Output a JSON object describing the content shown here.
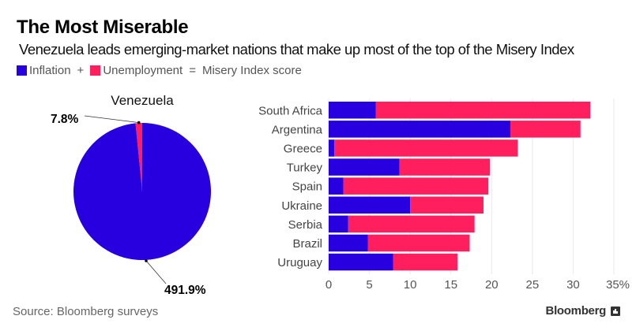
{
  "header": {
    "title": "The Most Miserable",
    "subtitle": "Venezuela leads emerging-market nations that make up most of the top of the Misery Index"
  },
  "legend": {
    "inflation_label": "Inflation",
    "plus": "+",
    "unemployment_label": "Unemployment",
    "equals": "=",
    "result_label": "Misery Index score"
  },
  "colors": {
    "inflation": "#2800E0",
    "unemployment": "#FF1F5F",
    "gridline": "#E8E8EE",
    "text": "#444444"
  },
  "footer": {
    "source": "Source: Bloomberg surveys",
    "brand": "Bloomberg"
  },
  "chart_data": [
    {
      "type": "pie",
      "title": "Venezuela",
      "slices": [
        {
          "name": "Unemployment",
          "value": 7.8,
          "label": "7.8%"
        },
        {
          "name": "Inflation",
          "value": 491.9,
          "label": "491.9%"
        }
      ]
    },
    {
      "type": "bar",
      "orientation": "horizontal",
      "stacked": true,
      "categories": [
        "South Africa",
        "Argentina",
        "Greece",
        "Turkey",
        "Spain",
        "Ukraine",
        "Serbia",
        "Brazil",
        "Uruguay"
      ],
      "series": [
        {
          "name": "Inflation",
          "values": [
            5.8,
            22.3,
            0.7,
            8.7,
            1.8,
            10.0,
            2.4,
            4.8,
            7.9
          ]
        },
        {
          "name": "Unemployment",
          "values": [
            26.3,
            8.6,
            22.5,
            11.1,
            17.8,
            9.0,
            15.5,
            12.5,
            7.9
          ]
        }
      ],
      "xlim": [
        0,
        35
      ],
      "xticks": [
        0,
        5,
        10,
        15,
        20,
        25,
        30,
        35
      ],
      "xtick_labels": [
        "0",
        "5",
        "10",
        "15",
        "20",
        "25",
        "30",
        "35%"
      ],
      "grid": true,
      "xlabel": "",
      "ylabel": ""
    }
  ]
}
